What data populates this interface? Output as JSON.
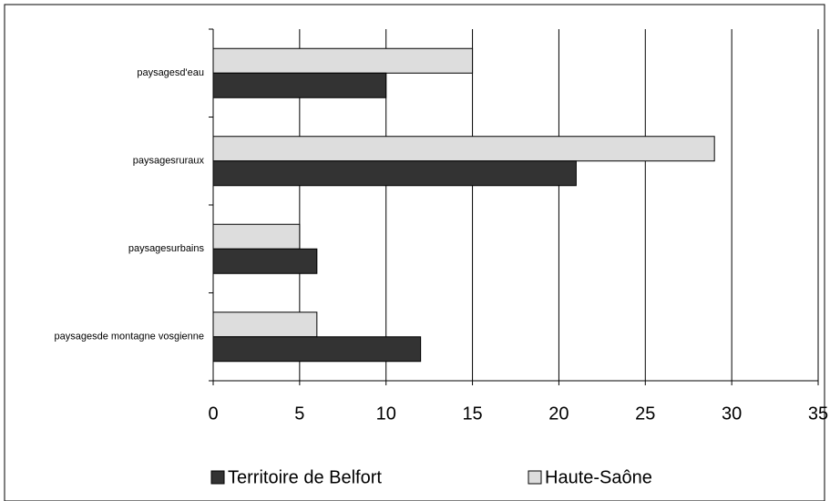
{
  "chart_data": {
    "type": "hbar",
    "categories": [
      "paysagesd'eau",
      "paysagesruraux",
      "paysagesurbains",
      "paysagesde montagne vosgienne"
    ],
    "series": [
      {
        "name": "Territoire de Belfort",
        "color": "#333333",
        "values": [
          10,
          21,
          6,
          12
        ]
      },
      {
        "name": "Haute-Saône",
        "color": "#dddddd",
        "values": [
          15,
          29,
          5,
          6
        ]
      }
    ],
    "xlim": [
      0,
      35
    ],
    "xticks": [
      0,
      5,
      10,
      15,
      20,
      25,
      30,
      35
    ],
    "grid": true
  }
}
